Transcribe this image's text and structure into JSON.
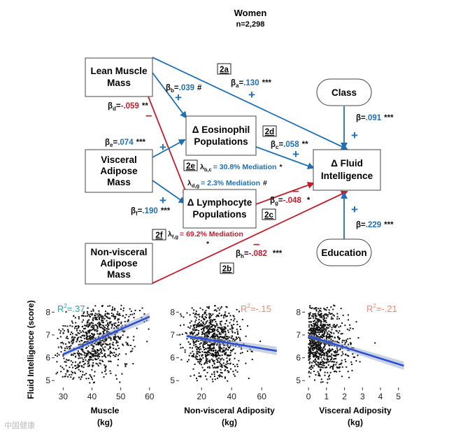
{
  "header": {
    "title": "Women",
    "n": "n=2,298"
  },
  "boxes": {
    "lean": [
      "Lean Muscle",
      "Mass"
    ],
    "visceral": [
      "Visceral",
      "Adipose",
      "Mass"
    ],
    "nonvisceral": [
      "Non-visceral",
      "Adipose",
      "Mass"
    ],
    "eos": [
      "Δ Eosinophil",
      "Populations"
    ],
    "lymph": [
      "Δ Lymphocyte",
      "Populations"
    ],
    "fluid": [
      "Δ Fluid",
      "Intelligence"
    ],
    "class": "Class",
    "education": "Education"
  },
  "path_labels": {
    "a": "2a",
    "b": "2b",
    "d": "2d",
    "e": "2e",
    "f": "2f",
    "c": "2c"
  },
  "betas": {
    "a": {
      "sym": "β",
      "sub": "a",
      "eq": "=",
      "val": ".130",
      "sig": "***"
    },
    "b": {
      "sym": "β",
      "sub": "b",
      "eq": "=",
      "val": ".039",
      "sig": "#"
    },
    "c": {
      "sym": "β",
      "sub": "c",
      "eq": "=",
      "val": ".058",
      "sig": "**"
    },
    "d": {
      "sym": "β",
      "sub": "d",
      "eq": "=",
      "val": "-.059",
      "sig": "**"
    },
    "e": {
      "sym": "β",
      "sub": "e",
      "eq": "=",
      "val": ".074",
      "sig": "***"
    },
    "f": {
      "sym": "β",
      "sub": "f",
      "eq": "=",
      "val": ".190",
      "sig": "***"
    },
    "g": {
      "sym": "β",
      "sub": "g",
      "eq": "=",
      "val": "-.048",
      "sig": "*"
    },
    "h": {
      "sym": "β",
      "sub": "h",
      "eq": "=",
      "val": "-.082",
      "sig": "***"
    },
    "class": {
      "sym": "β",
      "eq": "=",
      "val": ".091",
      "sig": "***"
    },
    "edu": {
      "sym": "β",
      "eq": "=",
      "val": ".229",
      "sig": "***"
    }
  },
  "mediation": {
    "bc": {
      "sym": "λ",
      "sub": "b,c",
      "text": "= 30.8% Mediation",
      "sig": "*"
    },
    "dg": {
      "sym": "λ",
      "sub": "d,g",
      "text": "= 2.3% Mediation",
      "sig": "#"
    },
    "fg": {
      "sym": "λ",
      "sub": "f,g",
      "text": "= 69.2% Mediation",
      "sig": "*"
    }
  },
  "signs": {
    "plus": "+",
    "minus": "–"
  },
  "colors": {
    "positive": "#1f6fb3",
    "negative": "#c21c2c",
    "regression": "#2d4fd6",
    "r2_pos": "#19a7b5",
    "r2_neg": "#f08a7a"
  },
  "watermark": "中国健康",
  "chart_data": [
    {
      "type": "scatter",
      "title": "",
      "xlabel": "Muscle\n(kg)",
      "ylabel": "Fluid Intelligence (score)",
      "xlim": [
        27,
        62
      ],
      "ylim": [
        4.7,
        8.5
      ],
      "xticks": [
        30,
        40,
        50,
        60
      ],
      "yticks": [
        5,
        6,
        7,
        8
      ],
      "r2_label": "R",
      "r2_value": "=.37",
      "r2_sign": "positive",
      "fit_line": [
        [
          30,
          6.15
        ],
        [
          60,
          7.8
        ]
      ],
      "cloud": {
        "x_center": 41,
        "x_spread": 6.5,
        "y_center": 6.7,
        "y_spread": 0.75
      }
    },
    {
      "type": "scatter",
      "title": "",
      "xlabel": "Non-visceral Adiposity\n(kg)",
      "ylabel": "",
      "xlim": [
        5,
        72
      ],
      "ylim": [
        4.7,
        8.5
      ],
      "xticks": [
        20,
        40,
        60
      ],
      "yticks": [
        5,
        6,
        7,
        8
      ],
      "r2_label": "R",
      "r2_value": "=-.15",
      "r2_sign": "negative",
      "fit_line": [
        [
          10,
          6.95
        ],
        [
          70,
          6.3
        ]
      ],
      "cloud": {
        "x_center": 27,
        "x_spread": 9,
        "y_center": 6.8,
        "y_spread": 0.75
      }
    },
    {
      "type": "scatter",
      "title": "",
      "xlabel": "Visceral Adiposity\n(kg)",
      "ylabel": "",
      "xlim": [
        -0.2,
        5.4
      ],
      "ylim": [
        4.7,
        8.5
      ],
      "xticks": [
        0,
        1,
        2,
        3,
        4,
        5
      ],
      "yticks": [
        5,
        6,
        7,
        8
      ],
      "r2_label": "R",
      "r2_value": "=-.21",
      "r2_sign": "negative",
      "fit_line": [
        [
          0,
          6.95
        ],
        [
          5.3,
          5.65
        ]
      ],
      "cloud": {
        "x_center": 0.9,
        "x_spread": 0.85,
        "y_center": 6.7,
        "y_spread": 0.75
      }
    }
  ]
}
